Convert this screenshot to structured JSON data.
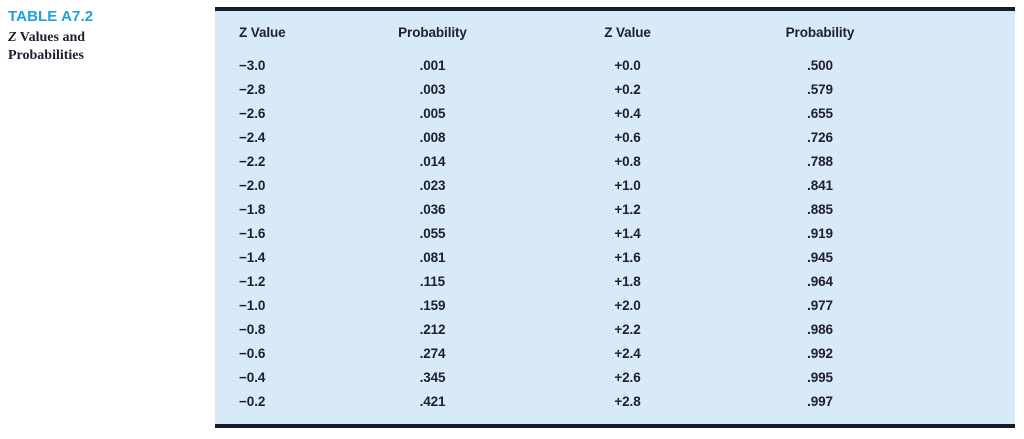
{
  "caption": {
    "label": "TABLE A7.2",
    "title_z": "Z",
    "title_rest_line1": " Values and",
    "title_line2": "Probabilities"
  },
  "colors": {
    "caption_label_blue": "#1ba1dc",
    "table_background": "#d8eaf7",
    "table_border": "#161b2e",
    "text": "#20202c"
  },
  "table": {
    "columns": [
      "Z Value",
      "Probability",
      "Z Value",
      "Probability"
    ],
    "rows": [
      [
        "−3.0",
        ".001",
        "+0.0",
        ".500"
      ],
      [
        "−2.8",
        ".003",
        "+0.2",
        ".579"
      ],
      [
        "−2.6",
        ".005",
        "+0.4",
        ".655"
      ],
      [
        "−2.4",
        ".008",
        "+0.6",
        ".726"
      ],
      [
        "−2.2",
        ".014",
        "+0.8",
        ".788"
      ],
      [
        "−2.0",
        ".023",
        "+1.0",
        ".841"
      ],
      [
        "−1.8",
        ".036",
        "+1.2",
        ".885"
      ],
      [
        "−1.6",
        ".055",
        "+1.4",
        ".919"
      ],
      [
        "−1.4",
        ".081",
        "+1.6",
        ".945"
      ],
      [
        "−1.2",
        ".115",
        "+1.8",
        ".964"
      ],
      [
        "−1.0",
        ".159",
        "+2.0",
        ".977"
      ],
      [
        "−0.8",
        ".212",
        "+2.2",
        ".986"
      ],
      [
        "−0.6",
        ".274",
        "+2.4",
        ".992"
      ],
      [
        "−0.4",
        ".345",
        "+2.6",
        ".995"
      ],
      [
        "−0.2",
        ".421",
        "+2.8",
        ".997"
      ]
    ]
  }
}
